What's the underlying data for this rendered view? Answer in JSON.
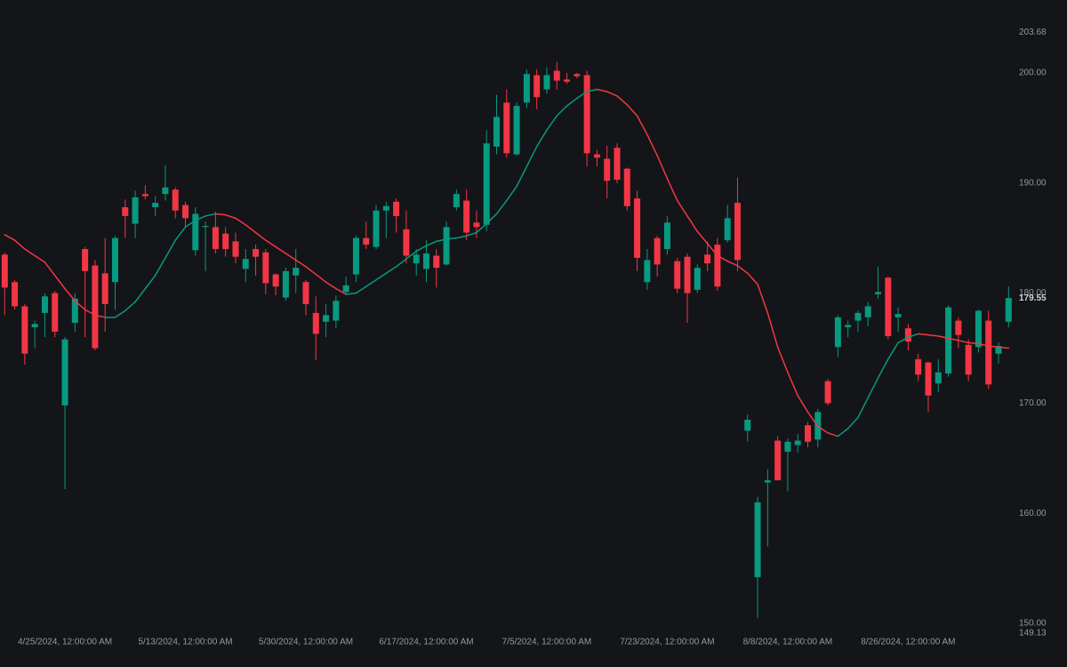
{
  "chart_data": {
    "type": "candlestick",
    "categories": [
      null,
      null,
      null,
      null,
      null,
      null,
      "4/25/2024, 12:00:00 AM",
      null,
      null,
      null,
      null,
      null,
      null,
      null,
      null,
      null,
      null,
      null,
      "5/13/2024, 12:00:00 AM",
      null,
      null,
      null,
      null,
      null,
      null,
      null,
      null,
      null,
      null,
      null,
      "5/30/2024, 12:00:00 AM",
      null,
      null,
      null,
      null,
      null,
      null,
      null,
      null,
      null,
      null,
      null,
      "6/17/2024, 12:00:00 AM",
      null,
      null,
      null,
      null,
      null,
      null,
      null,
      null,
      null,
      null,
      null,
      "7/5/2024, 12:00:00 AM",
      null,
      null,
      null,
      null,
      null,
      null,
      null,
      null,
      null,
      null,
      null,
      "7/23/2024, 12:00:00 AM",
      null,
      null,
      null,
      null,
      null,
      null,
      null,
      null,
      null,
      null,
      null,
      "8/8/2024, 12:00:00 AM",
      null,
      null,
      null,
      null,
      null,
      null,
      null,
      null,
      null,
      null,
      null,
      "8/26/2024, 12:00:00 AM",
      null,
      null,
      null,
      null,
      null,
      null,
      null,
      null,
      null,
      null
    ],
    "open": [
      183.5,
      181,
      178.8,
      176.9,
      178.2,
      180,
      169.8,
      177.3,
      184,
      182.5,
      181.8,
      181,
      187.8,
      186.3,
      189,
      187.8,
      189,
      189.4,
      188,
      183.9,
      186,
      186,
      185.4,
      184.7,
      182.2,
      184,
      183.7,
      181.7,
      179.6,
      181.6,
      181,
      178.2,
      177.4,
      177.5,
      180.1,
      181.7,
      185,
      184.2,
      187.5,
      188.3,
      185.8,
      182.7,
      182.2,
      183.4,
      182.6,
      187.8,
      188.4,
      186.4,
      186.2,
      193.3,
      197.3,
      192.6,
      197.3,
      199.8,
      198.5,
      200.2,
      199.4,
      199.9,
      199.8,
      192.6,
      192.2,
      193.2,
      191.3,
      188.6,
      181,
      185,
      184,
      182.9,
      183.3,
      180.3,
      183.5,
      184.4,
      184.8,
      188.2,
      167.5,
      154.2,
      162.8,
      166.6,
      165.6,
      166.2,
      168,
      166.7,
      172,
      175.1,
      176.9,
      177.5,
      177.8,
      179.9,
      181.4,
      177.8,
      176.8,
      174,
      173.7,
      171.8,
      172.7,
      177.5,
      175.3,
      175.1,
      177.5,
      174.5,
      177.4
    ],
    "high": [
      183.7,
      181.2,
      179,
      177.5,
      180,
      180.2,
      176,
      180,
      184.2,
      183,
      185,
      185.2,
      188.5,
      189.3,
      189.8,
      188.8,
      191.6,
      189.6,
      188.3,
      187.8,
      186.5,
      187.4,
      186,
      185.5,
      184,
      184.4,
      184,
      181.8,
      182.3,
      184,
      181.2,
      179.7,
      179,
      179.8,
      181.5,
      185.2,
      186.5,
      188,
      188.3,
      188.6,
      187.5,
      184,
      184.8,
      184,
      186.5,
      189.4,
      189.4,
      187.5,
      194.8,
      198,
      198.5,
      197.3,
      200.3,
      200.3,
      200.5,
      201,
      200,
      200,
      200.2,
      193,
      193.4,
      193.6,
      191.4,
      189.3,
      184,
      185.2,
      187,
      183.2,
      183.6,
      182.6,
      184.7,
      185,
      188,
      190.5,
      169,
      161.5,
      164,
      167,
      166.8,
      167.2,
      168.3,
      169.5,
      172.2,
      178,
      177.5,
      178.4,
      179.2,
      182.4,
      181.5,
      178.7,
      177.2,
      174.5,
      173.8,
      174,
      178.9,
      177.8,
      175.8,
      178.5,
      178.4,
      175.5,
      180.6
    ],
    "low": [
      178,
      178.5,
      173.5,
      175,
      176,
      176,
      162.2,
      176.5,
      176,
      174.8,
      176.5,
      178.5,
      185,
      185,
      188.5,
      187,
      188.4,
      186.8,
      186,
      183.4,
      182,
      183.6,
      183.3,
      182.7,
      181,
      181.6,
      179.9,
      179.8,
      179.3,
      180,
      178,
      173.9,
      176,
      176.8,
      179.8,
      181,
      184,
      184,
      185,
      185.5,
      182.7,
      181.6,
      181,
      180.5,
      182.5,
      187.5,
      184.8,
      185,
      185.6,
      192.6,
      192.3,
      192.5,
      196.8,
      196.7,
      198.1,
      198.5,
      199,
      199.5,
      191.5,
      191.5,
      188.6,
      190,
      187.5,
      182,
      180.3,
      181.5,
      183.5,
      180,
      177.3,
      180,
      182,
      180.2,
      184.6,
      182,
      166.5,
      150.5,
      157,
      163,
      162,
      165.5,
      166,
      166,
      169.8,
      174.2,
      176,
      176.5,
      177,
      179.5,
      175.8,
      176.5,
      174.8,
      172,
      169.2,
      171,
      172.4,
      175,
      172,
      174.6,
      171.3,
      173.6,
      176.9
    ],
    "close": [
      180.5,
      178.8,
      174.5,
      177.2,
      179.7,
      176.5,
      175.8,
      179.5,
      182,
      175,
      179,
      185,
      187,
      188.7,
      188.8,
      188.2,
      189.6,
      187.5,
      186.8,
      187.2,
      186.1,
      184,
      184,
      183.3,
      183.1,
      183.3,
      180.9,
      180.6,
      182,
      182.3,
      179,
      176.3,
      178,
      179.3,
      180.7,
      185,
      184.4,
      187.5,
      187.9,
      187,
      183.4,
      183.5,
      183.6,
      182.3,
      186,
      189,
      185.5,
      186,
      193.6,
      196,
      192.7,
      197,
      199.9,
      197.8,
      199.8,
      199.3,
      199.2,
      199.7,
      192.7,
      192.3,
      190.2,
      190.3,
      187.9,
      183.2,
      183,
      182.6,
      186.4,
      180.4,
      180,
      182.3,
      182.7,
      180.6,
      186.8,
      183,
      168.5,
      161,
      163,
      163,
      166.5,
      166.6,
      166.5,
      169.2,
      170,
      177.8,
      177.1,
      178.2,
      178.8,
      180.1,
      176.1,
      178.1,
      175.6,
      172.6,
      170.7,
      172.8,
      178.7,
      176.2,
      172.6,
      178.4,
      171.7,
      175.2,
      179.55
    ],
    "ma": [
      185.3,
      184.8,
      184,
      183.4,
      182.8,
      181.6,
      180.4,
      179.3,
      178.5,
      178,
      177.8,
      177.8,
      178.4,
      179.2,
      180.4,
      181.6,
      183.2,
      184.8,
      186,
      186.6,
      187,
      187.2,
      187.1,
      186.8,
      186.2,
      185.5,
      184.8,
      184.2,
      183.6,
      183,
      182.4,
      181.7,
      181,
      180.4,
      179.9,
      180,
      180.6,
      181.2,
      181.8,
      182.4,
      183.1,
      183.8,
      184.3,
      184.7,
      184.9,
      185,
      185.2,
      185.5,
      186.3,
      187.2,
      188.4,
      189.7,
      191.5,
      193.3,
      194.8,
      196.1,
      197,
      197.7,
      198.3,
      198.5,
      198.3,
      197.9,
      197.1,
      196.1,
      194.4,
      192.5,
      190.4,
      188.4,
      187,
      185.6,
      184.5,
      183.4,
      182.9,
      182.5,
      181.8,
      180.8,
      178.2,
      175.1,
      172.8,
      170.7,
      169.2,
      167.9,
      167.3,
      167,
      167.7,
      168.7,
      170.5,
      172.3,
      174,
      175.5,
      176,
      176.3,
      176.2,
      176.1,
      175.9,
      175.7,
      175.5,
      175.4,
      175.2,
      175.1,
      175
    ],
    "up_color": "#089981",
    "down_color": "#f23645",
    "ylim": [
      149.13,
      203.68
    ],
    "yticks": [
      149.13,
      {
        "value": 150,
        "label": "150.00"
      },
      {
        "value": 160,
        "label": "160.00"
      },
      {
        "value": 170,
        "label": "170.00"
      },
      {
        "value": 180,
        "label": "180.00"
      },
      {
        "value": 190,
        "label": "190.00"
      },
      {
        "value": 200,
        "label": "200.00"
      },
      203.68
    ],
    "last_price": 179.55
  }
}
